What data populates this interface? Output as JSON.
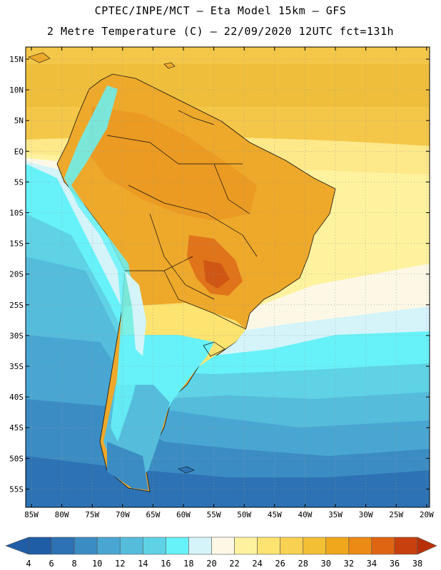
{
  "header": {
    "title_line1": "CPTEC/INPE/MCT –  Eta Model 15km – GFS",
    "title_line2": "2 Metre Temperature (C) – 22/09/2020 12UTC fct=131h"
  },
  "map": {
    "lat_labels": [
      "15N",
      "10N",
      "5N",
      "EQ",
      "5S",
      "10S",
      "15S",
      "20S",
      "25S",
      "30S",
      "35S",
      "40S",
      "45S",
      "50S",
      "55S"
    ],
    "lon_labels": [
      "85W",
      "80W",
      "75W",
      "70W",
      "65W",
      "60W",
      "55W",
      "50W",
      "45W",
      "40W",
      "35W",
      "30W",
      "25W",
      "20W"
    ]
  },
  "colorbar": {
    "labels": [
      "4",
      "6",
      "8",
      "10",
      "12",
      "14",
      "16",
      "18",
      "20",
      "22",
      "24",
      "26",
      "28",
      "30",
      "32",
      "34",
      "36",
      "38"
    ],
    "colors": [
      "#1f5da6",
      "#2c72b4",
      "#3c8cc4",
      "#49a6d2",
      "#55bcdc",
      "#5fd2e6",
      "#66f2f8",
      "#d4f4fa",
      "#fdf8e6",
      "#fff29e",
      "#fde36f",
      "#f9d152",
      "#f2bf35",
      "#f0a71c",
      "#ec8a16",
      "#df6512",
      "#c8400e",
      "#b83008"
    ]
  }
}
